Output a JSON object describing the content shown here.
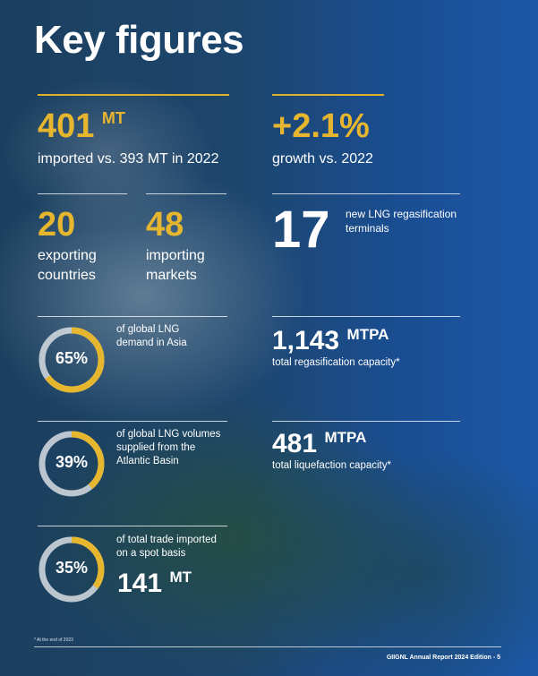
{
  "title": "Key figures",
  "imports": {
    "value": "401",
    "unit": "MT",
    "desc": "imported vs. 393 MT in 2022"
  },
  "growth": {
    "value": "+2.1%",
    "desc": "growth vs. 2022"
  },
  "exporting": {
    "value": "20",
    "line1": "exporting",
    "line2": "countries"
  },
  "importing": {
    "value": "48",
    "line1": "importing",
    "line2": "markets"
  },
  "terminals": {
    "value": "17",
    "line1": "new LNG regasification",
    "line2": "terminals"
  },
  "rings": [
    {
      "percent": 65,
      "label": "65%",
      "line1": "of global LNG",
      "line2": "demand in Asia",
      "line3": ""
    },
    {
      "percent": 39,
      "label": "39%",
      "line1": "of global LNG volumes",
      "line2": "supplied from the",
      "line3": "Atlantic Basin"
    },
    {
      "percent": 35,
      "label": "35%",
      "line1": "of total trade imported",
      "line2": "on a spot basis",
      "line3": ""
    }
  ],
  "spot": {
    "value": "141",
    "unit": "MT"
  },
  "regas": {
    "value": "1,143",
    "unit": "MTPA",
    "desc": "total regasification capacity*"
  },
  "liquefaction": {
    "value": "481",
    "unit": "MTPA",
    "desc": "total liquefaction capacity*"
  },
  "footnote": "* At the end of 2023",
  "footer": "GIIGNL Annual Report 2024 Edition - 5",
  "colors": {
    "gold": "#e6b62f",
    "ring_track": "#d7dde3",
    "background": "#1d57a6"
  }
}
